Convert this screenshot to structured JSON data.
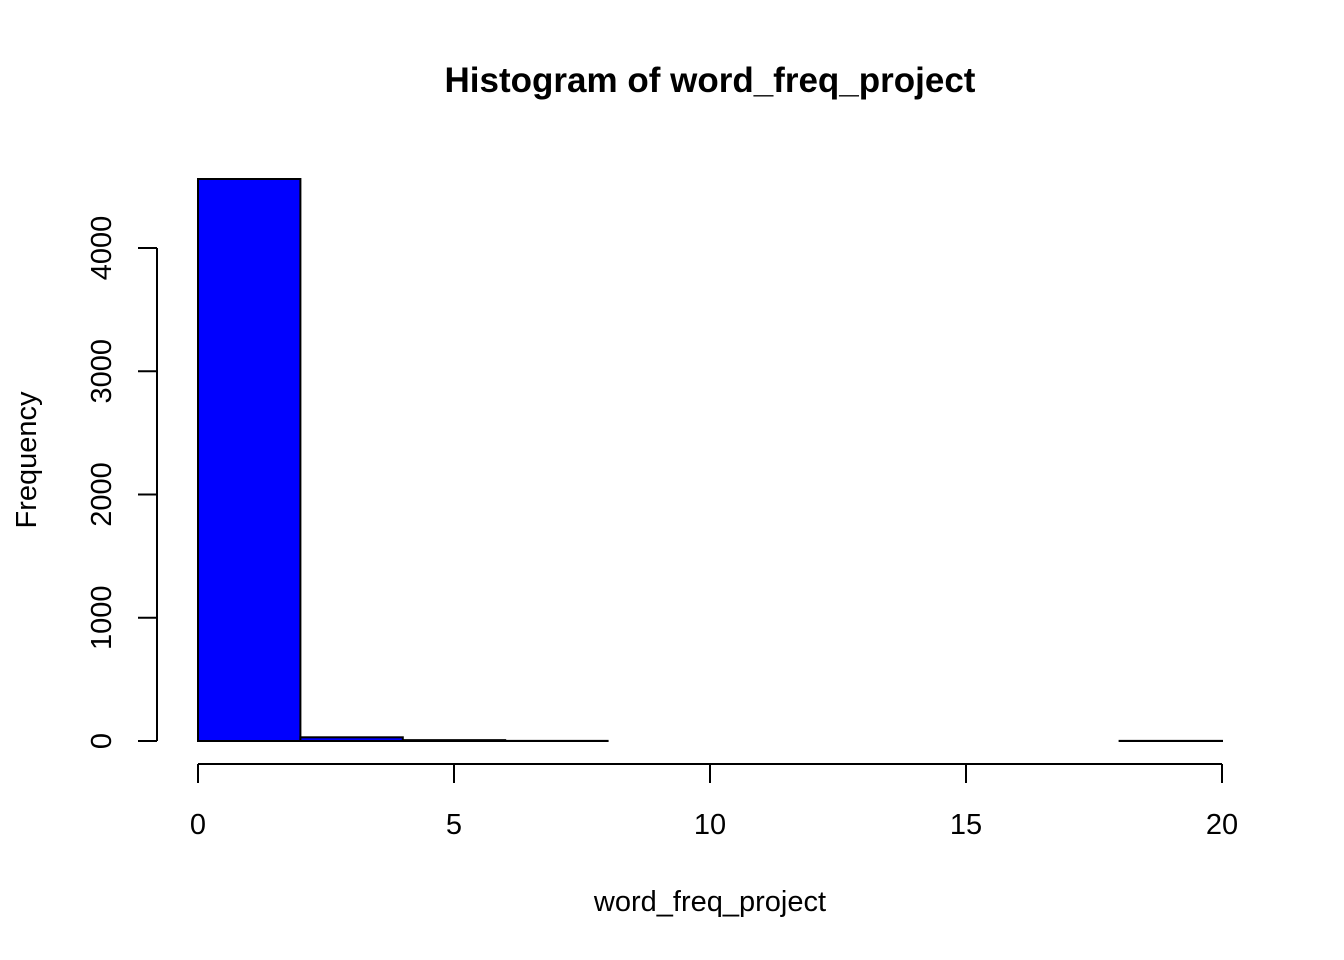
{
  "chart_data": {
    "type": "bar",
    "title": "Histogram of word_freq_project",
    "xlabel": "word_freq_project",
    "ylabel": "Frequency",
    "bins": [
      {
        "start": 0,
        "end": 2,
        "count": 4560
      },
      {
        "start": 2,
        "end": 4,
        "count": 30
      },
      {
        "start": 4,
        "end": 6,
        "count": 7
      },
      {
        "start": 6,
        "end": 8,
        "count": 1
      },
      {
        "start": 8,
        "end": 10,
        "count": 0
      },
      {
        "start": 10,
        "end": 12,
        "count": 0
      },
      {
        "start": 12,
        "end": 14,
        "count": 0
      },
      {
        "start": 14,
        "end": 16,
        "count": 0
      },
      {
        "start": 16,
        "end": 18,
        "count": 0
      },
      {
        "start": 18,
        "end": 20,
        "count": 1
      }
    ],
    "x_ticks": [
      0,
      5,
      10,
      15,
      20
    ],
    "y_ticks": [
      0,
      1000,
      2000,
      3000,
      4000
    ],
    "xlim": [
      0,
      20
    ],
    "ylim": [
      0,
      4560
    ],
    "bar_color": "#0000FF",
    "grid": false,
    "legend": "none"
  }
}
